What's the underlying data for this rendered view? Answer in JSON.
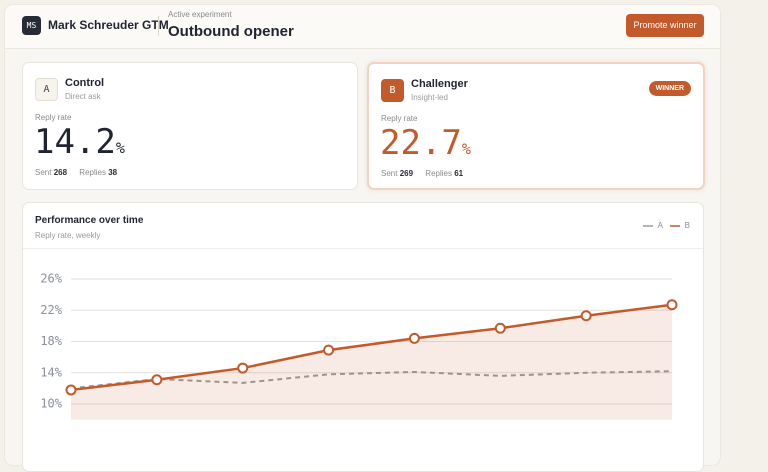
{
  "header": {
    "org_initials": "MS",
    "org": "Mark Schreuder GTM",
    "eyebrow": "Active experiment",
    "title": "Outbound opener",
    "button": "Promote winner"
  },
  "variants": [
    {
      "letter": "A",
      "name": "Control",
      "subtitle": "Direct ask",
      "metric_label": "Reply rate",
      "value": 14.2,
      "unit": "%",
      "sent_label": "Sent",
      "sent": 268,
      "replies_label": "Replies",
      "replies": 38
    },
    {
      "letter": "B",
      "name": "Challenger",
      "subtitle": "Insight-led",
      "metric_label": "Reply rate",
      "value": 22.7,
      "unit": "%",
      "sent_label": "Sent",
      "sent": 269,
      "replies_label": "Replies",
      "replies": 61,
      "badge": "WINNER"
    }
  ],
  "chart_data": {
    "type": "line",
    "title": "Performance over time",
    "subtitle": "Reply rate, weekly",
    "series": [
      {
        "name": "A",
        "color": "#9a9a9a",
        "dashed": true,
        "values": [
          12.0,
          13.2,
          12.7,
          13.8,
          14.1,
          13.6,
          14.0,
          14.2
        ]
      },
      {
        "name": "B",
        "color": "#c35a2b",
        "area": true,
        "markers": true,
        "values": [
          11.8,
          13.1,
          14.6,
          16.9,
          18.4,
          19.7,
          21.3,
          22.7
        ]
      }
    ],
    "ylim": [
      8,
      28
    ],
    "yticks": [
      {
        "value": 10,
        "label": "10%"
      },
      {
        "value": 14,
        "label": "14%"
      },
      {
        "value": 18,
        "label": "18%"
      },
      {
        "value": 22,
        "label": "22%"
      },
      {
        "value": 26,
        "label": "26%"
      }
    ],
    "grid": true,
    "legend": "top-right"
  }
}
